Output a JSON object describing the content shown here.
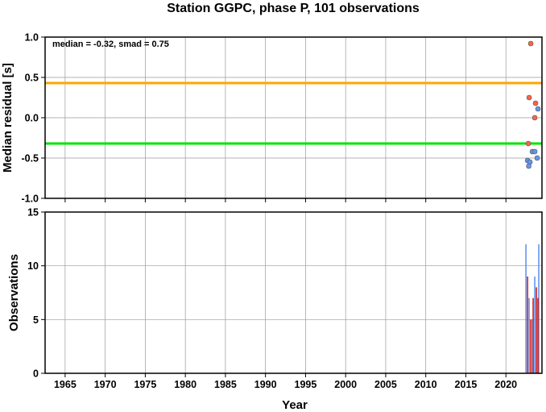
{
  "chart_data": [
    {
      "type": "scatter",
      "title": "Station GGPC, phase P, 101 observations",
      "xlabel": "",
      "ylabel": "Median residual [s]",
      "xlim": [
        1962.5,
        2024.5
      ],
      "ylim": [
        -1.0,
        1.0
      ],
      "y_ticks": [
        "-1.0",
        "-0.5",
        "0.0",
        "0.5",
        "1.0"
      ],
      "grid": true,
      "annotation": "median = -0.32, smad = 0.75",
      "reference_lines": [
        {
          "y": 0.43,
          "color": "#ffa500"
        },
        {
          "y": -0.32,
          "color": "#00e600"
        }
      ],
      "series": [
        {
          "color": "#ff6347",
          "points": [
            {
              "x": 2023.1,
              "y": 0.92
            },
            {
              "x": 2022.9,
              "y": 0.25
            },
            {
              "x": 2023.7,
              "y": 0.18
            },
            {
              "x": 2023.6,
              "y": 0.0
            },
            {
              "x": 2022.8,
              "y": -0.32
            }
          ]
        },
        {
          "color": "#6495ed",
          "points": [
            {
              "x": 2024.0,
              "y": 0.11
            },
            {
              "x": 2023.3,
              "y": -0.42
            },
            {
              "x": 2023.6,
              "y": -0.42
            },
            {
              "x": 2022.7,
              "y": -0.53
            },
            {
              "x": 2023.0,
              "y": -0.55
            },
            {
              "x": 2022.85,
              "y": -0.6
            },
            {
              "x": 2023.9,
              "y": -0.5
            }
          ]
        }
      ]
    },
    {
      "type": "bar",
      "title": "",
      "xlabel": "Year",
      "ylabel": "Observations",
      "xlim": [
        1962.5,
        2024.5
      ],
      "ylim": [
        0,
        15
      ],
      "x_ticks": [
        "1965",
        "1970",
        "1975",
        "1980",
        "1985",
        "1990",
        "1995",
        "2000",
        "2005",
        "2010",
        "2015",
        "2020"
      ],
      "y_ticks": [
        "0",
        "5",
        "10",
        "15"
      ],
      "grid": true,
      "series": [
        {
          "color": "#6495ed",
          "bars": [
            {
              "x": 2022.5,
              "y": 12
            },
            {
              "x": 2022.9,
              "y": 7
            },
            {
              "x": 2023.3,
              "y": 5
            },
            {
              "x": 2023.6,
              "y": 9
            },
            {
              "x": 2024.1,
              "y": 12
            }
          ]
        },
        {
          "color": "#c81e1e",
          "bars": [
            {
              "x": 2022.7,
              "y": 9
            },
            {
              "x": 2023.1,
              "y": 5
            },
            {
              "x": 2023.4,
              "y": 7
            },
            {
              "x": 2023.8,
              "y": 8
            },
            {
              "x": 2024.0,
              "y": 7
            }
          ]
        }
      ]
    }
  ]
}
